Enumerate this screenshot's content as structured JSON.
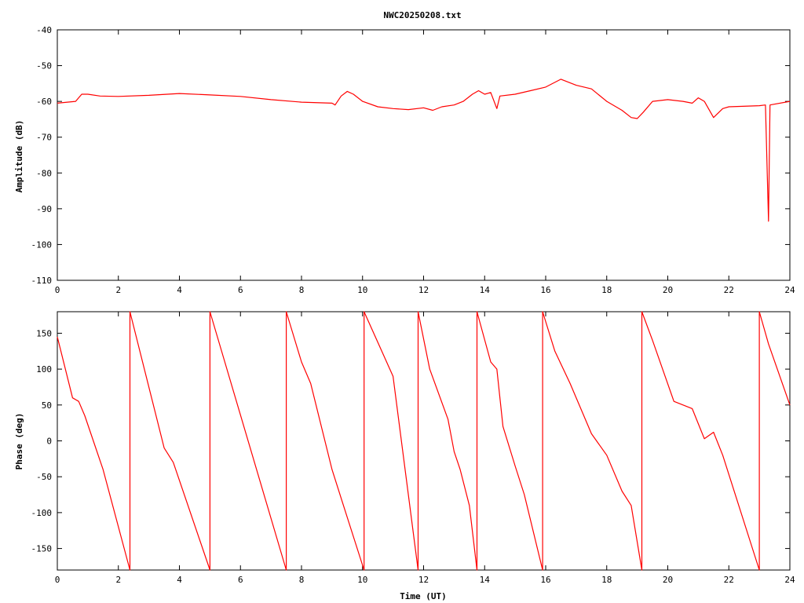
{
  "chart_data": [
    {
      "type": "line",
      "title": "NWC20250208.txt",
      "xlabel": "",
      "ylabel": "Amplitude (dB)",
      "xlim": [
        0,
        24
      ],
      "ylim": [
        -110,
        -40
      ],
      "x_ticks": [
        "0",
        "2",
        "4",
        "6",
        "8",
        "10",
        "12",
        "14",
        "16",
        "18",
        "20",
        "22",
        "24"
      ],
      "y_ticks": [
        "-40",
        "-50",
        "-60",
        "-70",
        "-80",
        "-90",
        "-100",
        "-110"
      ],
      "grid": false,
      "color": "#ff0000",
      "series": [
        {
          "x": [
            0,
            0.6,
            0.8,
            1.0,
            1.4,
            2,
            3,
            4,
            5,
            6,
            7,
            8,
            9,
            9.1,
            9.3,
            9.5,
            9.7,
            10,
            10.5,
            11,
            11.5,
            12,
            12.3,
            12.6,
            13,
            13.3,
            13.6,
            13.8,
            14,
            14.2,
            14.4,
            14.5,
            15,
            15.5,
            16,
            16.5,
            17,
            17.5,
            18,
            18.5,
            18.8,
            19,
            19.2,
            19.5,
            20,
            20.5,
            20.8,
            21,
            21.2,
            21.5,
            21.8,
            22,
            23,
            23.2,
            23.3,
            23.35,
            24
          ],
          "y": [
            -60.5,
            -60,
            -58,
            -58,
            -58.5,
            -58.6,
            -58.3,
            -57.8,
            -58.2,
            -58.6,
            -59.5,
            -60.2,
            -60.5,
            -61,
            -58.5,
            -57.2,
            -58,
            -60,
            -61.5,
            -62,
            -62.3,
            -61.8,
            -62.5,
            -61.5,
            -61,
            -60,
            -58,
            -57,
            -58,
            -57.5,
            -62,
            -58.5,
            -58,
            -57,
            -56,
            -53.8,
            -55.5,
            -56.5,
            -60,
            -62.5,
            -64.5,
            -64.8,
            -63,
            -60,
            -59.5,
            -60,
            -60.5,
            -59,
            -60,
            -64.5,
            -62,
            -61.5,
            -61.2,
            -61,
            -93.5,
            -61,
            -60
          ]
        }
      ]
    },
    {
      "type": "line",
      "title": "",
      "xlabel": "Time (UT)",
      "ylabel": "Phase (deg)",
      "xlim": [
        0,
        24
      ],
      "ylim": [
        -180,
        180
      ],
      "x_ticks": [
        "0",
        "2",
        "4",
        "6",
        "8",
        "10",
        "12",
        "14",
        "16",
        "18",
        "20",
        "22",
        "24"
      ],
      "y_ticks": [
        "150",
        "100",
        "50",
        "0",
        "-50",
        "-100",
        "-150"
      ],
      "grid": false,
      "color": "#ff0000",
      "series": [
        {
          "x": [
            0,
            0.5,
            0.7,
            0.9,
            1.5,
            2.38,
            2.38,
            3.5,
            3.8,
            4.0,
            5.0,
            5.0,
            7.5,
            7.5,
            8.0,
            8.3,
            9.0,
            9.3,
            10.05,
            10.05,
            11.0,
            11.82,
            11.82,
            12.2,
            12.8,
            13.0,
            13.2,
            13.5,
            13.75,
            13.75,
            14.2,
            14.4,
            14.6,
            15.0,
            15.3,
            15.9,
            15.9,
            16.3,
            16.8,
            17.5,
            18.0,
            18.5,
            18.8,
            19.15,
            19.15,
            19.5,
            20.2,
            20.8,
            21.2,
            21.5,
            21.8,
            23.0,
            23.0,
            23.3,
            24.0
          ],
          "y": [
            145,
            60,
            55,
            35,
            -40,
            -180,
            180,
            -10,
            -30,
            -55,
            -180,
            180,
            -180,
            180,
            110,
            80,
            -40,
            -80,
            -180,
            180,
            90,
            -180,
            180,
            100,
            30,
            -15,
            -40,
            -90,
            -180,
            180,
            110,
            100,
            20,
            -35,
            -75,
            -180,
            180,
            125,
            80,
            10,
            -20,
            -70,
            -90,
            -180,
            180,
            140,
            55,
            45,
            3,
            12,
            -20,
            -180,
            180,
            135,
            50
          ]
        }
      ]
    }
  ]
}
